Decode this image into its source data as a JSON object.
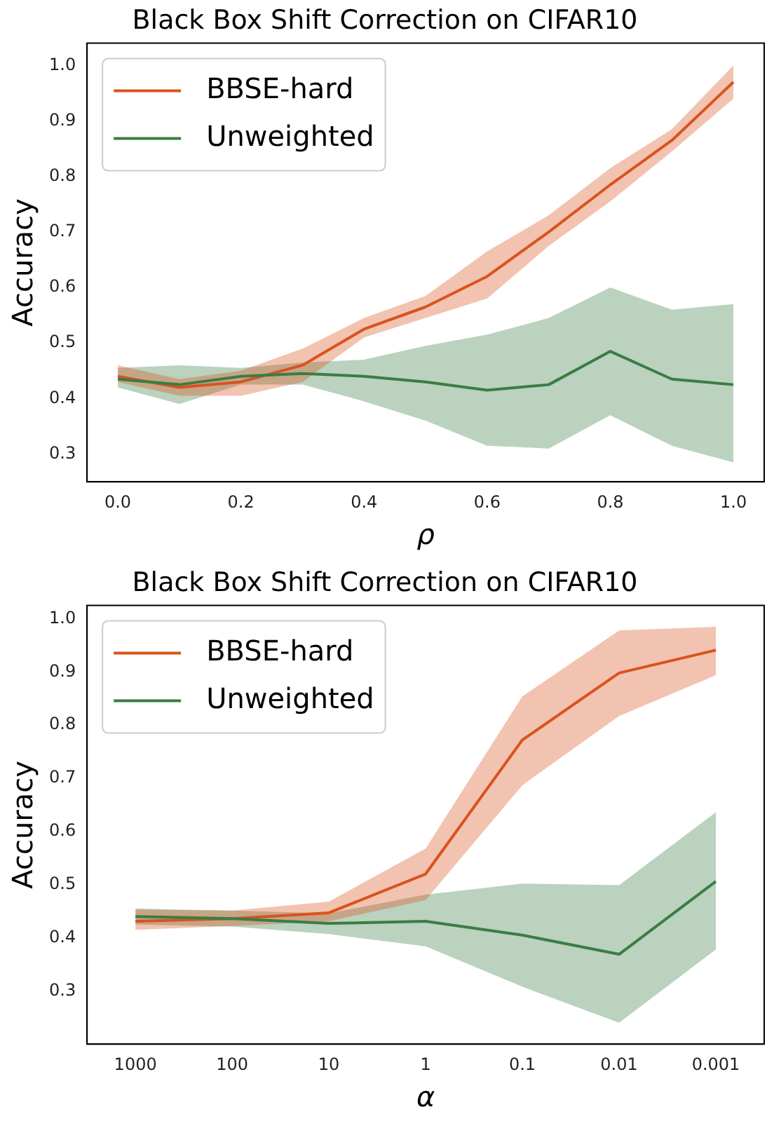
{
  "chart_data": [
    {
      "type": "line",
      "title": "Black Box Shift Correction on CIFAR10",
      "xlabel": "ρ",
      "ylabel": "Accuracy",
      "x": [
        0,
        0.1,
        0.2,
        0.3,
        0.4,
        0.5,
        0.6,
        0.7,
        0.8,
        0.9,
        1.0
      ],
      "xlim": [
        -0.05,
        1.05
      ],
      "xticks": [
        {
          "value": 0,
          "label": "0.0"
        },
        0.2,
        0.4,
        0.6,
        0.8,
        {
          "value": 1,
          "label": "1.0"
        }
      ],
      "ylim": [
        0.25,
        1.04
      ],
      "yticks": [
        0.3,
        0.4,
        0.5,
        0.6,
        0.7,
        0.8,
        0.9,
        {
          "value": 1,
          "label": "1.0"
        }
      ],
      "legend": "top left",
      "grid": false,
      "series": [
        {
          "name": "BBSE-hard",
          "color": "#d9531e",
          "values": [
            0.44,
            0.42,
            0.43,
            0.46,
            0.525,
            0.565,
            0.62,
            0.7,
            0.785,
            0.865,
            0.97
          ],
          "lower": [
            0.43,
            0.405,
            0.405,
            0.43,
            0.51,
            0.545,
            0.58,
            0.675,
            0.755,
            0.845,
            0.94
          ],
          "upper": [
            0.46,
            0.435,
            0.45,
            0.49,
            0.545,
            0.585,
            0.665,
            0.73,
            0.815,
            0.885,
            1.0
          ]
        },
        {
          "name": "Unweighted",
          "color": "#3a7d44",
          "values": [
            0.435,
            0.425,
            0.44,
            0.445,
            0.44,
            0.43,
            0.415,
            0.425,
            0.485,
            0.435,
            0.425
          ],
          "lower": [
            0.42,
            0.39,
            0.425,
            0.425,
            0.395,
            0.36,
            0.315,
            0.31,
            0.37,
            0.315,
            0.285
          ],
          "upper": [
            0.455,
            0.46,
            0.455,
            0.465,
            0.47,
            0.495,
            0.515,
            0.545,
            0.6,
            0.56,
            0.57
          ]
        }
      ]
    },
    {
      "type": "line",
      "title": "Black Box Shift Correction on CIFAR10",
      "xlabel": "α",
      "ylabel": "Accuracy",
      "categories": [
        "1000",
        "100",
        "10",
        "1",
        "0.1",
        "0.01",
        "0.001"
      ],
      "ylim": [
        0.2,
        1.025
      ],
      "yticks": [
        0.3,
        0.4,
        0.5,
        0.6,
        0.7,
        0.8,
        0.9,
        {
          "value": 1,
          "label": "1.0"
        }
      ],
      "legend": "top left",
      "grid": false,
      "series": [
        {
          "name": "BBSE-hard",
          "color": "#d9531e",
          "values": [
            0.431,
            0.436,
            0.447,
            0.52,
            0.772,
            0.898,
            0.941
          ],
          "lower": [
            0.415,
            0.422,
            0.431,
            0.471,
            0.687,
            0.817,
            0.894
          ],
          "upper": [
            0.453,
            0.451,
            0.468,
            0.568,
            0.854,
            0.978,
            0.985
          ]
        },
        {
          "name": "Unweighted",
          "color": "#3a7d44",
          "values": [
            0.44,
            0.436,
            0.427,
            0.431,
            0.405,
            0.369,
            0.506
          ],
          "lower": [
            0.425,
            0.421,
            0.407,
            0.384,
            0.308,
            0.24,
            0.378
          ],
          "upper": [
            0.455,
            0.451,
            0.446,
            0.481,
            0.502,
            0.499,
            0.636
          ]
        }
      ]
    }
  ]
}
